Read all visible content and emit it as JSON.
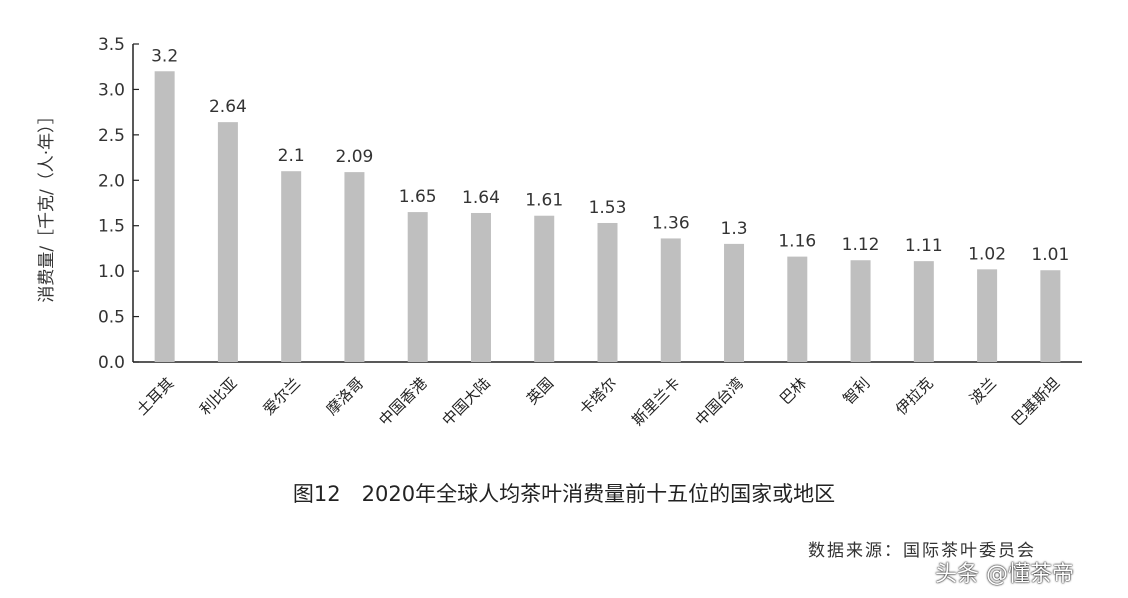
{
  "chart_data": {
    "type": "bar",
    "title": "图12　2020年全球人均茶叶消费量前十五位的国家或地区",
    "xlabel": "",
    "ylabel": "消费量/［千克/（人·年）］",
    "ylim": [
      0,
      3.5
    ],
    "yticks": [
      "0.0",
      "0.5",
      "1.0",
      "1.5",
      "2.0",
      "2.5",
      "3.0",
      "3.5"
    ],
    "grid": false,
    "categories": [
      "土耳其",
      "利比亚",
      "爱尔兰",
      "摩洛哥",
      "中国香港",
      "中国大陆",
      "英国",
      "卡塔尔",
      "斯里兰卡",
      "中国台湾",
      "巴林",
      "智利",
      "伊拉克",
      "波兰",
      "巴基斯坦"
    ],
    "values": [
      3.2,
      2.64,
      2.1,
      2.09,
      1.65,
      1.64,
      1.61,
      1.53,
      1.36,
      1.3,
      1.16,
      1.12,
      1.11,
      1.02,
      1.01
    ],
    "data_labels": [
      "3.2",
      "2.64",
      "2.1",
      "2.09",
      "1.65",
      "1.64",
      "1.61",
      "1.53",
      "1.36",
      "1.3",
      "1.16",
      "1.12",
      "1.11",
      "1.02",
      "1.01"
    ],
    "bar_color": "#bfbfbf"
  },
  "source": "数据来源：国际茶叶委员会",
  "watermark": "头条 @懂茶帝"
}
